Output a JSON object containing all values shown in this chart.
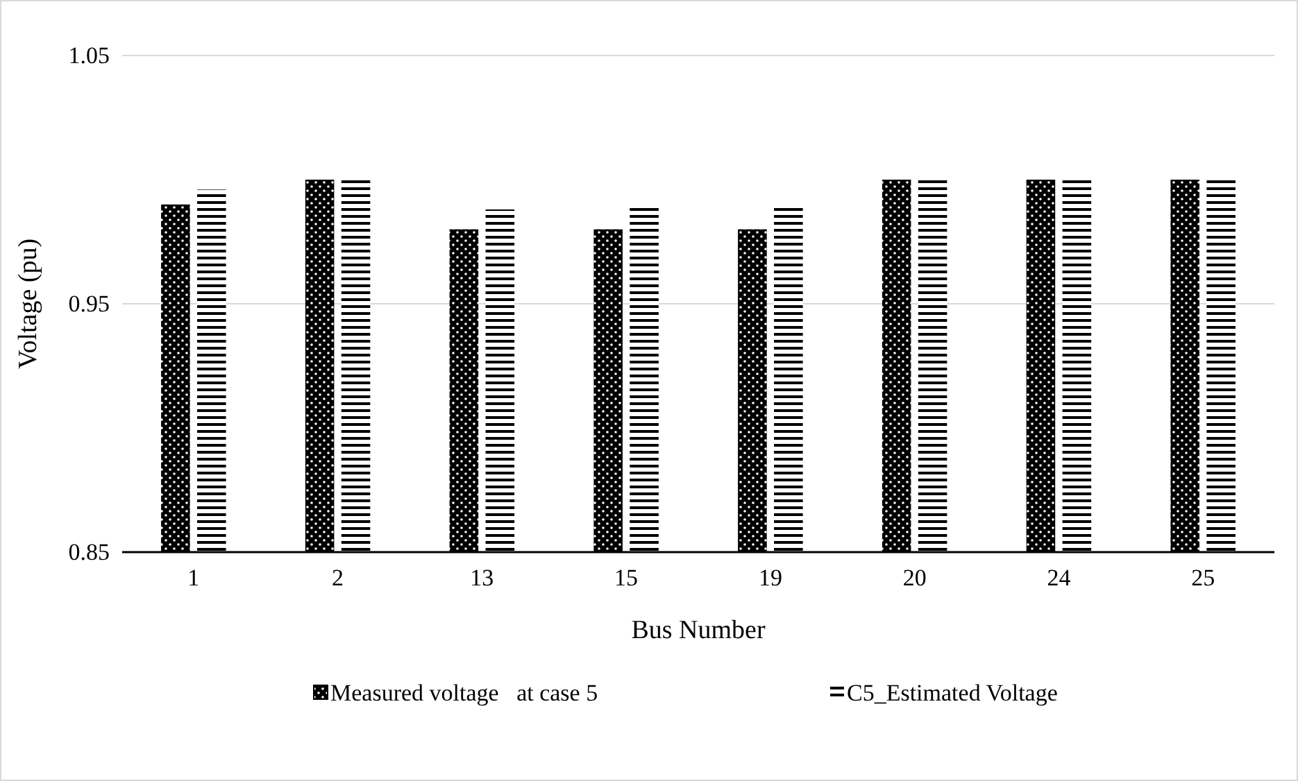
{
  "chart_data": {
    "type": "bar",
    "xlabel": "Bus Number",
    "ylabel": "Voltage (pu)",
    "categories": [
      "1",
      "2",
      "13",
      "15",
      "19",
      "20",
      "24",
      "25"
    ],
    "series": [
      {
        "name": "Measured voltage   at case 5",
        "color": "#000000",
        "values": [
          0.99,
          1.0,
          0.98,
          0.98,
          0.98,
          1.0,
          1.0,
          1.0
        ]
      },
      {
        "name": "C5_Estimated Voltage",
        "color": "#000000",
        "values": [
          0.996,
          1.0,
          0.988,
          0.99,
          0.99,
          1.0,
          1.0,
          1.0
        ]
      }
    ],
    "ylim": [
      0.85,
      1.05
    ],
    "yticks": [
      0.85,
      0.95,
      1.05
    ],
    "grid": "y",
    "legend": "bottom"
  }
}
